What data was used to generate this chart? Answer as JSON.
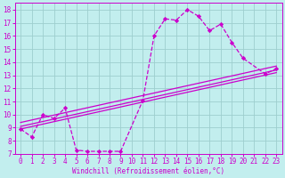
{
  "title": "",
  "xlabel": "Windchill (Refroidissement éolien,°C)",
  "ylabel": "",
  "xlim": [
    -0.5,
    23.5
  ],
  "ylim": [
    7,
    18.5
  ],
  "xticks": [
    0,
    1,
    2,
    3,
    4,
    5,
    6,
    7,
    8,
    9,
    10,
    11,
    12,
    13,
    14,
    15,
    16,
    17,
    18,
    19,
    20,
    21,
    22,
    23
  ],
  "yticks": [
    7,
    8,
    9,
    10,
    11,
    12,
    13,
    14,
    15,
    16,
    17,
    18
  ],
  "background_color": "#c2eeee",
  "grid_color": "#9ecece",
  "line_color": "#cc00cc",
  "wiggly_line": {
    "x": [
      0,
      1,
      2,
      3,
      4,
      5,
      6,
      7,
      8,
      9,
      11,
      12,
      13,
      14,
      15,
      16,
      17,
      18,
      19,
      20,
      22,
      23
    ],
    "y": [
      8.9,
      8.3,
      10.0,
      9.7,
      10.5,
      7.3,
      7.2,
      7.2,
      7.2,
      7.2,
      11.1,
      16.0,
      17.3,
      17.2,
      18.0,
      17.5,
      16.4,
      16.9,
      15.5,
      14.3,
      13.1,
      13.5
    ]
  },
  "straight_lines": [
    {
      "x0": 0,
      "y0": 8.9,
      "x1": 23,
      "y1": 13.2
    },
    {
      "x0": 0,
      "y0": 9.1,
      "x1": 23,
      "y1": 13.4
    },
    {
      "x0": 0,
      "y0": 9.4,
      "x1": 23,
      "y1": 13.7
    }
  ],
  "tick_fontsize": 5.5,
  "xlabel_fontsize": 5.5
}
